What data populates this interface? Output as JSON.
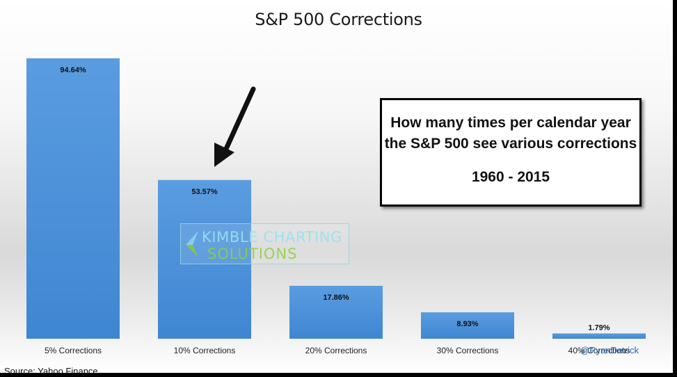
{
  "chart_data": {
    "type": "bar",
    "title": "S&P 500 Corrections",
    "categories": [
      "5% Corrections",
      "10% Corrections",
      "20% Corrections",
      "30% Corrections",
      "40% Corrections"
    ],
    "values": [
      94.64,
      53.57,
      17.86,
      8.93,
      1.79
    ],
    "data_labels": [
      "94.64%",
      "53.57%",
      "17.86%",
      "8.93%",
      "1.79%"
    ],
    "ylim": [
      0,
      100
    ],
    "grid": false,
    "bar_color": "#4a8fd6"
  },
  "callout": {
    "line1": "How many times per calendar year",
    "line2": "the S&P 500 see various corrections",
    "range": "1960 - 2015"
  },
  "watermark": {
    "top": "KIMBLE CHARTING",
    "bottom": "SOLUTIONS"
  },
  "source": "Source:  Yahoo Finance",
  "credit": "@RyanDetrick"
}
